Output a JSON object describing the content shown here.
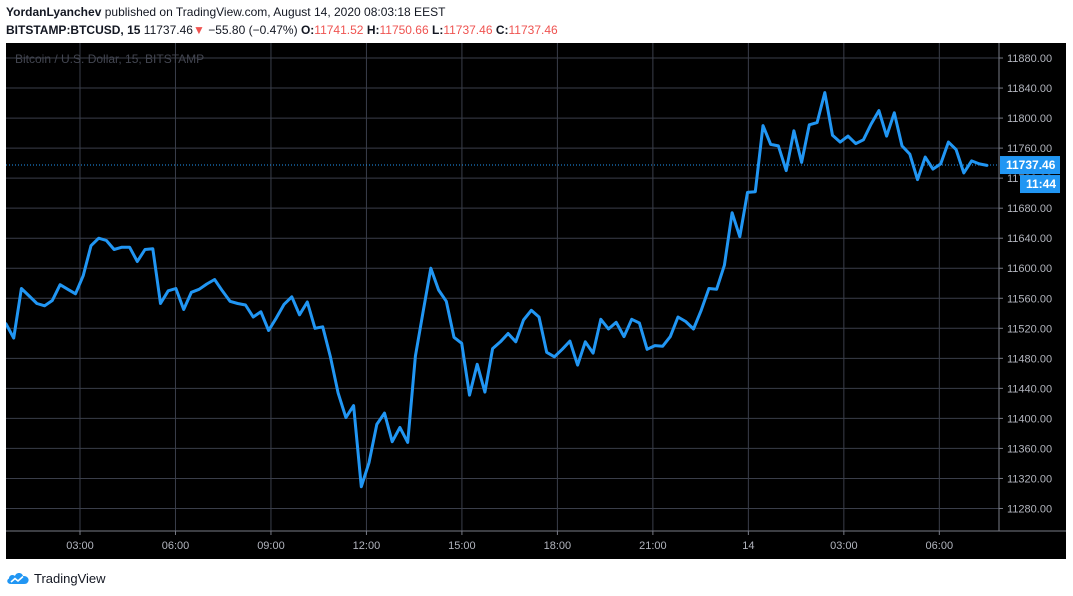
{
  "header": {
    "author": "YordanLyanchev",
    "published_text": "published on TradingView.com, August 14, 2020 08:03:18 EEST",
    "symbol": "BITSTAMP:BTCUSD, 15",
    "last": "11737.46",
    "change_arrow": "▼",
    "change": "−55.80 (−0.47%)",
    "o_label": "O:",
    "o_value": "11741.52",
    "h_label": "H:",
    "h_value": "11750.66",
    "l_label": "L:",
    "l_value": "11737.46",
    "c_label": "C:",
    "c_value": "11737.46"
  },
  "watermark": "Bitcoin / U.S. Dollar, 15, BITSTAMP",
  "price_tag": {
    "value": "11737.46",
    "countdown": "11:44"
  },
  "footer": {
    "brand": "TradingView",
    "logo_icon": "tradingview-cloud-icon"
  },
  "colors": {
    "background": "#000000",
    "line": "#2196f3",
    "grid": "#3a3e4a",
    "axis_text": "#b2b5be",
    "tag": "#2196f3"
  },
  "chart_data": {
    "type": "line",
    "ylim": [
      11250,
      11900
    ],
    "xlim": [
      0,
      104
    ],
    "y_ticks": [
      "11880.00",
      "11840.00",
      "11800.00",
      "11760.00",
      "11720.00",
      "11680.00",
      "11640.00",
      "11600.00",
      "11560.00",
      "11520.00",
      "11480.00",
      "11440.00",
      "11400.00",
      "11360.00",
      "11320.00",
      "11280.00"
    ],
    "y_tick_values": [
      11880,
      11840,
      11800,
      11760,
      11720,
      11680,
      11640,
      11600,
      11560,
      11520,
      11480,
      11440,
      11400,
      11360,
      11320,
      11280
    ],
    "x_ticks": [
      "03:00",
      "06:00",
      "09:00",
      "12:00",
      "15:00",
      "18:00",
      "21:00",
      "14",
      "03:00",
      "06:00"
    ],
    "x_tick_positions": [
      7.75,
      17.75,
      27.75,
      37.75,
      47.75,
      57.75,
      67.75,
      77.75,
      87.75,
      97.75
    ],
    "series": [
      {
        "values": [
          11526,
          11507,
          11573,
          11563,
          11553,
          11550,
          11557,
          11578,
          11572,
          11566,
          11590,
          11630,
          11640,
          11637,
          11625,
          11628,
          11628,
          11609,
          11625,
          11626,
          11553,
          11570,
          11573,
          11545,
          11568,
          11572,
          11579,
          11585,
          11570,
          11556,
          11553,
          11551,
          11535,
          11542,
          11517,
          11534,
          11552,
          11562,
          11538,
          11555,
          11520,
          11522,
          11482,
          11434,
          11401,
          11417,
          11309,
          11341,
          11392,
          11407,
          11369,
          11388,
          11368,
          11483,
          11542,
          11600,
          11571,
          11556,
          11508,
          11500,
          11431,
          11472,
          11435,
          11493,
          11502,
          11513,
          11502,
          11531,
          11544,
          11535,
          11488,
          11482,
          11492,
          11503,
          11471,
          11502,
          11487,
          11532,
          11519,
          11528,
          11509,
          11532,
          11527,
          11492,
          11497,
          11496,
          11509,
          11535,
          11529,
          11519,
          11544,
          11573,
          11572,
          11604,
          11674,
          11642,
          11701,
          11702,
          11790,
          11765,
          11763,
          11730,
          11783,
          11741,
          11791,
          11794,
          11834,
          11777,
          11768,
          11776,
          11766,
          11771,
          11792,
          11810,
          11776,
          11807,
          11763,
          11752,
          11718,
          11748,
          11732,
          11739,
          11768,
          11758,
          11727,
          11743,
          11739,
          11737
        ]
      }
    ]
  }
}
